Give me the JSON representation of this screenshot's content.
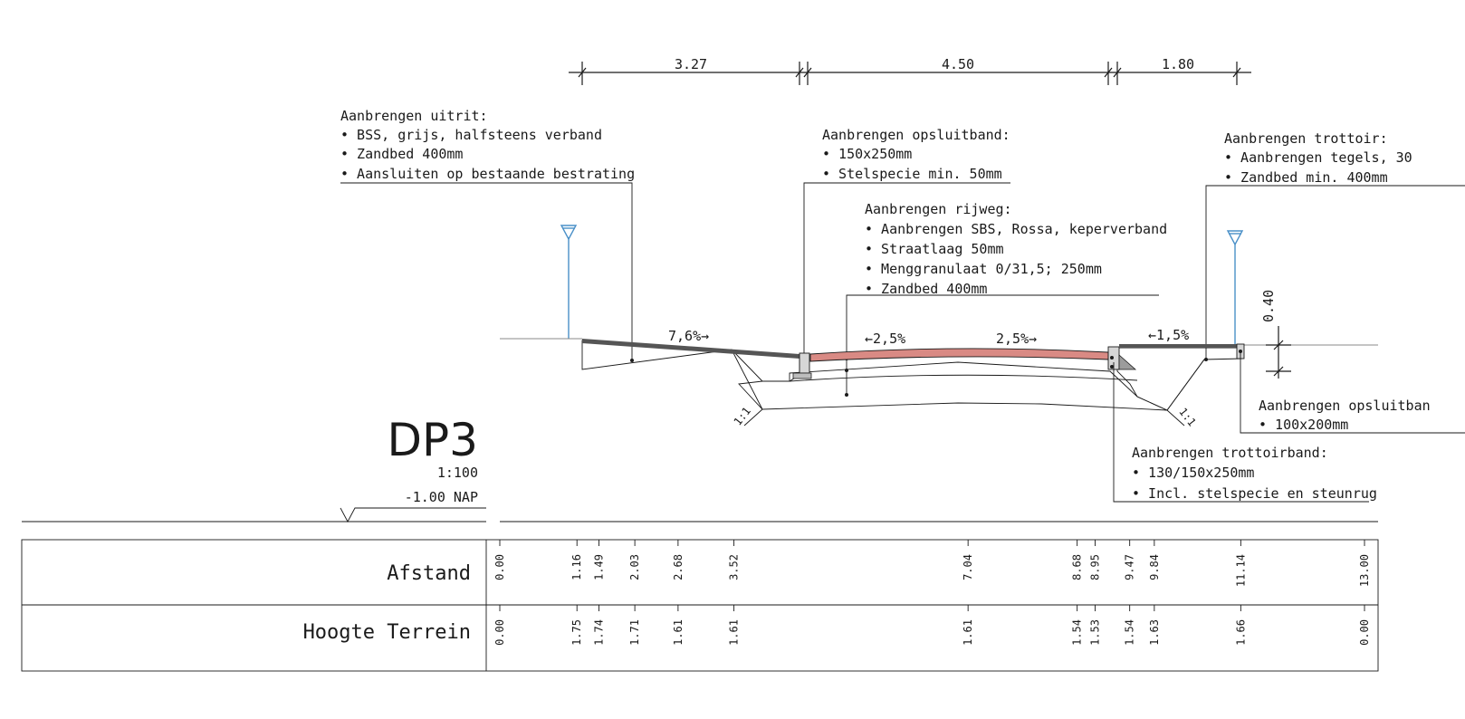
{
  "drawing": {
    "id": "DP3",
    "scale": "1:100",
    "reference_level": "-1.00  NAP",
    "dimensions": [
      "3.27",
      "4.50",
      "1.80"
    ],
    "height_dim": "0.40",
    "slopes": {
      "exit": "7,6%→",
      "road_left": "←2,5%",
      "road_right": "2,5%→",
      "sidewalk": "←1,5%"
    },
    "embankment": {
      "left": "1:1",
      "right": "1:1"
    }
  },
  "notes": {
    "uitrit": {
      "title": "Aanbrengen uitrit:",
      "items": [
        "• BSS, grijs, halfsteens verband",
        "• Zandbed 400mm",
        "• Aansluiten op bestaande bestrating"
      ]
    },
    "opsluitband": {
      "title": "Aanbrengen opsluitband:",
      "items": [
        "•    150x250mm",
        "•    Stelspecie min. 50mm"
      ]
    },
    "rijweg": {
      "title": "Aanbrengen rijweg:",
      "items": [
        "• Aanbrengen SBS, Rossa, keperverband",
        "• Straatlaag 50mm",
        "• Menggranulaat 0/31,5; 250mm",
        "• Zandbed 400mm"
      ]
    },
    "trottoir": {
      "title": "Aanbrengen trottoir:",
      "items": [
        "•    Aanbrengen tegels, 30",
        "•    Zandbed min. 400mm"
      ]
    },
    "opsluitband2": {
      "title": "Aanbrengen opsluitban",
      "items": [
        "•    100x200mm"
      ]
    },
    "trottoirband": {
      "title": "Aanbrengen trottoirband:",
      "items": [
        "•    130/150x250mm",
        "•    Incl. stelspecie en steunrug"
      ]
    }
  },
  "table": {
    "rows": [
      {
        "label": "Afstand",
        "values": [
          "0.00",
          "1.16",
          "1.49",
          "2.03",
          "2.68",
          "3.52",
          "7.04",
          "8.68",
          "8.95",
          "9.47",
          "9.84",
          "11.14",
          "13.00"
        ]
      },
      {
        "label": "Hoogte Terrein",
        "values": [
          "0.00",
          "1.75",
          "1.74",
          "1.71",
          "1.61",
          "1.61",
          "1.61",
          "1.54",
          "1.53",
          "1.54",
          "1.63",
          "1.66",
          "0.00"
        ]
      }
    ]
  },
  "colors": {
    "road_surface": "#d98a84",
    "water_marker": "#4a90c8",
    "fill_sand": "#f3f3f3"
  }
}
